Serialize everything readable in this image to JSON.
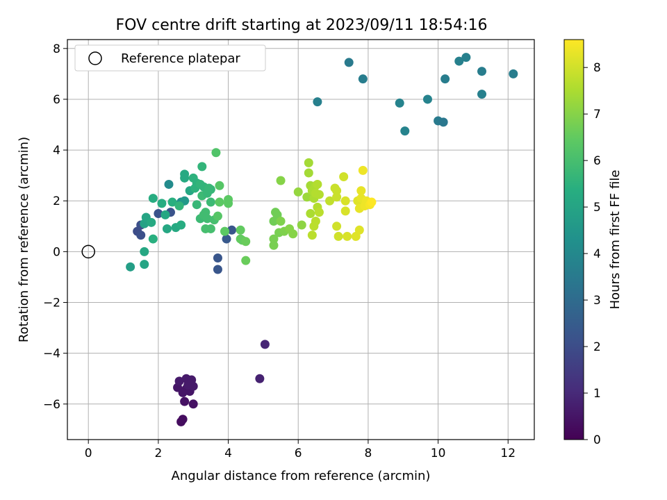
{
  "chart_data": {
    "type": "scatter",
    "title": "FOV centre drift starting at 2023/09/11 18:54:16",
    "xlabel": "Angular distance from reference (arcmin)",
    "ylabel": "Rotation from reference (arcmin)",
    "xlim": [
      -0.6,
      12.75
    ],
    "ylim": [
      -7.4,
      8.35
    ],
    "xticks": [
      0,
      2,
      4,
      6,
      8,
      10,
      12
    ],
    "yticks": [
      -6,
      -4,
      -2,
      0,
      2,
      4,
      6,
      8
    ],
    "grid": true,
    "legend": {
      "placement": "top-left",
      "entries": [
        {
          "label": "Reference platepar",
          "marker": "open-circle"
        }
      ]
    },
    "reference_point": {
      "x": 0,
      "y": 0
    },
    "colorbar": {
      "label": "Hours from first FF file",
      "colormap": "viridis",
      "range": [
        0,
        8.6
      ],
      "ticks": [
        0,
        1,
        2,
        3,
        4,
        5,
        6,
        7,
        8
      ]
    },
    "points": [
      {
        "x": 2.65,
        "y": -6.7,
        "c": 0.3
      },
      {
        "x": 2.7,
        "y": -6.6,
        "c": 0.3
      },
      {
        "x": 2.75,
        "y": -5.9,
        "c": 0.4
      },
      {
        "x": 3.0,
        "y": -6.0,
        "c": 0.4
      },
      {
        "x": 2.55,
        "y": -5.35,
        "c": 0.5
      },
      {
        "x": 2.8,
        "y": -5.4,
        "c": 0.5
      },
      {
        "x": 2.9,
        "y": -5.5,
        "c": 0.5
      },
      {
        "x": 2.7,
        "y": -5.55,
        "c": 0.5
      },
      {
        "x": 2.6,
        "y": -5.1,
        "c": 0.6
      },
      {
        "x": 2.8,
        "y": -5.0,
        "c": 0.6
      },
      {
        "x": 2.95,
        "y": -5.05,
        "c": 0.6
      },
      {
        "x": 3.0,
        "y": -5.3,
        "c": 0.6
      },
      {
        "x": 2.85,
        "y": -5.25,
        "c": 0.6
      },
      {
        "x": 4.9,
        "y": -5.0,
        "c": 0.8
      },
      {
        "x": 5.05,
        "y": -3.65,
        "c": 0.9
      },
      {
        "x": 1.4,
        "y": 0.8,
        "c": 2.0
      },
      {
        "x": 1.5,
        "y": 0.65,
        "c": 2.1
      },
      {
        "x": 1.5,
        "y": 1.05,
        "c": 2.1
      },
      {
        "x": 2.35,
        "y": 1.55,
        "c": 2.2
      },
      {
        "x": 2.0,
        "y": 1.5,
        "c": 2.2
      },
      {
        "x": 3.7,
        "y": -0.25,
        "c": 2.3
      },
      {
        "x": 3.7,
        "y": -0.7,
        "c": 2.3
      },
      {
        "x": 4.1,
        "y": 0.85,
        "c": 2.3
      },
      {
        "x": 3.95,
        "y": 0.5,
        "c": 2.4
      },
      {
        "x": 6.55,
        "y": 5.9,
        "c": 3.7
      },
      {
        "x": 7.45,
        "y": 7.45,
        "c": 3.5
      },
      {
        "x": 7.85,
        "y": 6.8,
        "c": 3.6
      },
      {
        "x": 8.9,
        "y": 5.85,
        "c": 3.8
      },
      {
        "x": 9.05,
        "y": 4.75,
        "c": 3.8
      },
      {
        "x": 9.7,
        "y": 6.0,
        "c": 3.8
      },
      {
        "x": 10.0,
        "y": 5.15,
        "c": 3.5
      },
      {
        "x": 10.15,
        "y": 5.1,
        "c": 3.4
      },
      {
        "x": 10.2,
        "y": 6.8,
        "c": 3.6
      },
      {
        "x": 10.6,
        "y": 7.5,
        "c": 3.7
      },
      {
        "x": 10.8,
        "y": 7.65,
        "c": 3.7
      },
      {
        "x": 11.25,
        "y": 7.1,
        "c": 3.6
      },
      {
        "x": 11.25,
        "y": 6.2,
        "c": 3.7
      },
      {
        "x": 12.15,
        "y": 7.0,
        "c": 3.6
      },
      {
        "x": 2.3,
        "y": 2.65,
        "c": 4.1
      },
      {
        "x": 2.65,
        "y": 1.95,
        "c": 4.3
      },
      {
        "x": 2.75,
        "y": 2.0,
        "c": 4.6
      },
      {
        "x": 1.2,
        "y": -0.6,
        "c": 4.8
      },
      {
        "x": 1.6,
        "y": -0.5,
        "c": 5.0
      },
      {
        "x": 1.6,
        "y": 0.0,
        "c": 5.1
      },
      {
        "x": 1.6,
        "y": 1.1,
        "c": 4.9
      },
      {
        "x": 1.65,
        "y": 1.35,
        "c": 5.0
      },
      {
        "x": 1.8,
        "y": 1.15,
        "c": 5.2
      },
      {
        "x": 1.85,
        "y": 0.5,
        "c": 5.4
      },
      {
        "x": 1.85,
        "y": 2.1,
        "c": 5.3
      },
      {
        "x": 2.1,
        "y": 1.9,
        "c": 5.3
      },
      {
        "x": 2.2,
        "y": 1.45,
        "c": 5.1
      },
      {
        "x": 2.25,
        "y": 0.9,
        "c": 5.1
      },
      {
        "x": 2.4,
        "y": 1.95,
        "c": 5.4
      },
      {
        "x": 2.5,
        "y": 0.95,
        "c": 5.2
      },
      {
        "x": 2.65,
        "y": 1.05,
        "c": 5.3
      },
      {
        "x": 2.6,
        "y": 1.8,
        "c": 5.6
      },
      {
        "x": 2.75,
        "y": 2.9,
        "c": 5.2
      },
      {
        "x": 2.75,
        "y": 3.05,
        "c": 5.2
      },
      {
        "x": 2.9,
        "y": 2.4,
        "c": 5.1
      },
      {
        "x": 3.0,
        "y": 2.9,
        "c": 5.5
      },
      {
        "x": 3.05,
        "y": 2.5,
        "c": 5.5
      },
      {
        "x": 3.1,
        "y": 2.7,
        "c": 5.5
      },
      {
        "x": 3.2,
        "y": 2.65,
        "c": 5.6
      },
      {
        "x": 3.25,
        "y": 2.2,
        "c": 5.8
      },
      {
        "x": 3.3,
        "y": 2.55,
        "c": 5.6
      },
      {
        "x": 3.4,
        "y": 2.3,
        "c": 5.7
      },
      {
        "x": 3.45,
        "y": 2.5,
        "c": 5.7
      },
      {
        "x": 3.5,
        "y": 2.45,
        "c": 5.7
      },
      {
        "x": 3.1,
        "y": 1.85,
        "c": 5.7
      },
      {
        "x": 3.2,
        "y": 1.3,
        "c": 5.8
      },
      {
        "x": 3.3,
        "y": 1.45,
        "c": 5.9
      },
      {
        "x": 3.35,
        "y": 1.55,
        "c": 5.9
      },
      {
        "x": 3.4,
        "y": 1.3,
        "c": 5.9
      },
      {
        "x": 3.35,
        "y": 0.9,
        "c": 6.0
      },
      {
        "x": 3.5,
        "y": 0.9,
        "c": 6.0
      },
      {
        "x": 3.5,
        "y": 1.95,
        "c": 5.8
      },
      {
        "x": 3.6,
        "y": 1.25,
        "c": 6.0
      },
      {
        "x": 3.25,
        "y": 3.35,
        "c": 5.6
      },
      {
        "x": 3.65,
        "y": 3.9,
        "c": 6.2
      },
      {
        "x": 3.75,
        "y": 2.6,
        "c": 6.3
      },
      {
        "x": 3.7,
        "y": 1.4,
        "c": 6.3
      },
      {
        "x": 3.75,
        "y": 1.95,
        "c": 6.4
      },
      {
        "x": 3.9,
        "y": 0.8,
        "c": 6.4
      },
      {
        "x": 4.0,
        "y": 2.05,
        "c": 6.4
      },
      {
        "x": 4.0,
        "y": 1.9,
        "c": 6.4
      },
      {
        "x": 4.35,
        "y": 0.85,
        "c": 6.5
      },
      {
        "x": 4.35,
        "y": 0.5,
        "c": 6.5
      },
      {
        "x": 4.4,
        "y": 0.45,
        "c": 6.5
      },
      {
        "x": 4.5,
        "y": 0.4,
        "c": 6.6
      },
      {
        "x": 4.5,
        "y": -0.35,
        "c": 6.6
      },
      {
        "x": 5.35,
        "y": 1.55,
        "c": 6.7
      },
      {
        "x": 5.4,
        "y": 1.45,
        "c": 6.7
      },
      {
        "x": 5.3,
        "y": 1.2,
        "c": 6.7
      },
      {
        "x": 5.3,
        "y": 0.5,
        "c": 6.8
      },
      {
        "x": 5.3,
        "y": 0.25,
        "c": 6.8
      },
      {
        "x": 5.45,
        "y": 0.75,
        "c": 6.8
      },
      {
        "x": 5.5,
        "y": 1.2,
        "c": 6.9
      },
      {
        "x": 5.6,
        "y": 0.8,
        "c": 6.9
      },
      {
        "x": 5.75,
        "y": 0.9,
        "c": 7.0
      },
      {
        "x": 5.85,
        "y": 0.7,
        "c": 7.0
      },
      {
        "x": 5.5,
        "y": 2.8,
        "c": 7.0
      },
      {
        "x": 6.0,
        "y": 2.35,
        "c": 7.2
      },
      {
        "x": 6.1,
        "y": 1.05,
        "c": 7.1
      },
      {
        "x": 6.25,
        "y": 2.15,
        "c": 7.3
      },
      {
        "x": 6.3,
        "y": 3.5,
        "c": 7.4
      },
      {
        "x": 6.3,
        "y": 3.1,
        "c": 7.4
      },
      {
        "x": 6.35,
        "y": 2.6,
        "c": 7.4
      },
      {
        "x": 6.4,
        "y": 2.4,
        "c": 7.5
      },
      {
        "x": 6.45,
        "y": 2.1,
        "c": 7.5
      },
      {
        "x": 6.5,
        "y": 2.6,
        "c": 7.5
      },
      {
        "x": 6.55,
        "y": 2.65,
        "c": 7.6
      },
      {
        "x": 6.5,
        "y": 2.3,
        "c": 7.6
      },
      {
        "x": 6.6,
        "y": 2.25,
        "c": 7.6
      },
      {
        "x": 6.55,
        "y": 1.75,
        "c": 7.6
      },
      {
        "x": 6.6,
        "y": 1.55,
        "c": 7.7
      },
      {
        "x": 6.5,
        "y": 1.2,
        "c": 7.7
      },
      {
        "x": 6.45,
        "y": 1.0,
        "c": 7.7
      },
      {
        "x": 6.4,
        "y": 0.65,
        "c": 7.7
      },
      {
        "x": 6.35,
        "y": 1.5,
        "c": 7.5
      },
      {
        "x": 6.9,
        "y": 2.0,
        "c": 7.8
      },
      {
        "x": 7.05,
        "y": 2.5,
        "c": 7.9
      },
      {
        "x": 7.1,
        "y": 2.4,
        "c": 7.9
      },
      {
        "x": 7.1,
        "y": 2.15,
        "c": 7.9
      },
      {
        "x": 7.1,
        "y": 1.0,
        "c": 8.0
      },
      {
        "x": 7.15,
        "y": 0.6,
        "c": 8.0
      },
      {
        "x": 7.3,
        "y": 2.95,
        "c": 8.0
      },
      {
        "x": 7.35,
        "y": 2.0,
        "c": 8.1
      },
      {
        "x": 7.35,
        "y": 1.6,
        "c": 8.1
      },
      {
        "x": 7.4,
        "y": 0.6,
        "c": 8.1
      },
      {
        "x": 7.65,
        "y": 0.6,
        "c": 8.2
      },
      {
        "x": 7.7,
        "y": 2.0,
        "c": 8.2
      },
      {
        "x": 7.75,
        "y": 1.7,
        "c": 8.3
      },
      {
        "x": 7.75,
        "y": 0.85,
        "c": 8.2
      },
      {
        "x": 7.8,
        "y": 2.4,
        "c": 8.3
      },
      {
        "x": 7.8,
        "y": 2.1,
        "c": 8.3
      },
      {
        "x": 7.85,
        "y": 3.2,
        "c": 8.4
      },
      {
        "x": 7.9,
        "y": 1.8,
        "c": 8.4
      },
      {
        "x": 7.95,
        "y": 2.0,
        "c": 8.4
      },
      {
        "x": 8.05,
        "y": 1.85,
        "c": 8.5
      },
      {
        "x": 8.1,
        "y": 1.95,
        "c": 8.6
      }
    ]
  }
}
